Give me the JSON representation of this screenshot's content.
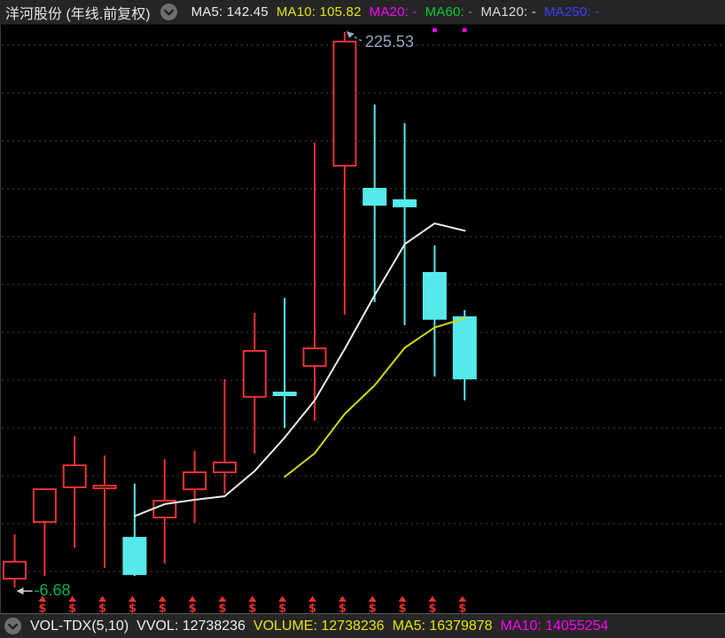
{
  "header": {
    "title": "洋河股份 (年线.前复权)",
    "ma_labels": [
      {
        "text": "MA5: 142.45",
        "color": "#ececec"
      },
      {
        "text": "MA10: 105.82",
        "color": "#e3e300"
      },
      {
        "text": "MA20: -",
        "color": "#ff00ff"
      },
      {
        "text": "MA60: -",
        "color": "#00cc33"
      },
      {
        "text": "MA120: -",
        "color": "#d8d8d8"
      },
      {
        "text": "MA250: -",
        "color": "#3c3cff"
      }
    ]
  },
  "footer": {
    "items": [
      {
        "text": "VOL-TDX(5,10)",
        "color": "#ececec"
      },
      {
        "text": "VVOL: 12738236",
        "color": "#ececec"
      },
      {
        "text": "VOLUME: 12738236",
        "color": "#e3e300"
      },
      {
        "text": "MA5: 16379878",
        "color": "#e3e300"
      },
      {
        "text": "MA10: 14055254",
        "color": "#ff00ff"
      }
    ]
  },
  "chart_data": {
    "type": "candlestick",
    "title": "洋河股份 年线 前复权 (yearly K-line, forward adjusted)",
    "ylim": [
      -17.4,
      228.5
    ],
    "grid_values": [
      0,
      20,
      40,
      60,
      80,
      100,
      120,
      140,
      160,
      180,
      200,
      220
    ],
    "grid_style": "dotted",
    "candles": [
      {
        "o": -3.0,
        "h": 15.6,
        "l": -6.68,
        "c": 4.1
      },
      {
        "o": 20.7,
        "h": 34.4,
        "l": -1.9,
        "c": 34.4
      },
      {
        "o": 35.2,
        "h": 56.7,
        "l": 10.0,
        "c": 44.4
      },
      {
        "o": 34.8,
        "h": 48.5,
        "l": 1.5,
        "c": 35.9
      },
      {
        "o": 14.1,
        "h": 36.7,
        "l": -1.9,
        "c": -1.1
      },
      {
        "o": 22.6,
        "h": 47.0,
        "l": 3.3,
        "c": 29.6
      },
      {
        "o": 34.4,
        "h": 50.4,
        "l": 20.4,
        "c": 41.5
      },
      {
        "o": 41.5,
        "h": 80.4,
        "l": 32.6,
        "c": 45.6
      },
      {
        "o": 73.0,
        "h": 108.1,
        "l": 49.3,
        "c": 92.2
      },
      {
        "o": 74.8,
        "h": 114.4,
        "l": 60.0,
        "c": 73.7
      },
      {
        "o": 85.9,
        "h": 179.3,
        "l": 63.0,
        "c": 93.3
      },
      {
        "o": 169.6,
        "h": 225.53,
        "l": 107.4,
        "c": 221.5
      },
      {
        "o": 160.0,
        "h": 195.2,
        "l": 112.6,
        "c": 153.3
      },
      {
        "o": 155.2,
        "h": 187.4,
        "l": 103.0,
        "c": 152.6
      },
      {
        "o": 124.8,
        "h": 136.3,
        "l": 81.5,
        "c": 105.6
      },
      {
        "o": 106.3,
        "h": 109.3,
        "l": 71.5,
        "c": 80.7
      }
    ],
    "series": [
      {
        "name": "MA5",
        "start_index": 4,
        "values": [
          23.2,
          28.2,
          30.0,
          31.5,
          42.0,
          56.0,
          71.5,
          93.0,
          115.5,
          136.8,
          145.5,
          142.45
        ],
        "color": "#ececec"
      },
      {
        "name": "MA10",
        "start_index": 9,
        "values": [
          39.6,
          49.4,
          65.9,
          77.8,
          93.5,
          102.0,
          105.82
        ],
        "color": "#d8d800"
      }
    ],
    "dividend_markers": {
      "symbol": "$",
      "color": "#e83030",
      "indices": [
        1,
        2,
        3,
        4,
        5,
        6,
        7,
        8,
        9,
        10,
        11,
        12,
        13,
        14,
        15
      ]
    },
    "dots": {
      "color": "#ff00ff",
      "indices": [
        14,
        15
      ],
      "value": 226.3
    },
    "annotations": [
      {
        "text": "225.53",
        "index": 11,
        "anchor": "high",
        "color": "#96a5c0",
        "arrow_color": "#96a5c0",
        "dashed": true
      },
      {
        "text": "-6.68",
        "index": 0,
        "anchor": "low",
        "color": "#00b050",
        "arrow_color": "#cccccc",
        "dashed": false
      }
    ],
    "colors": {
      "up": "#e83333",
      "down": "#55eaea",
      "grid": "#484848",
      "background": "#000000"
    },
    "legend_position": "top-bar"
  }
}
